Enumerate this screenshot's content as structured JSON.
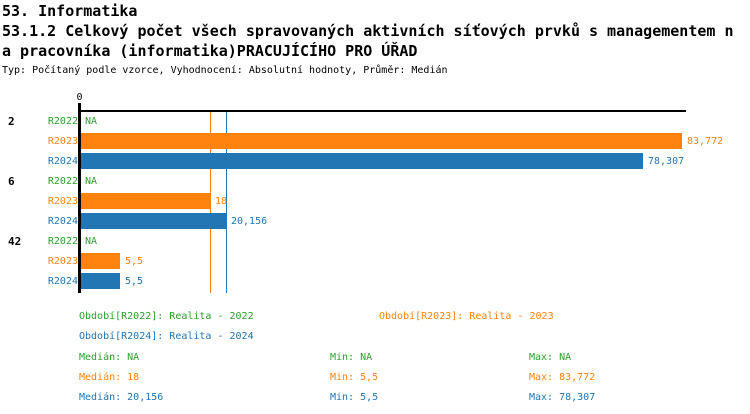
{
  "header": {
    "line1": "53. Informatika",
    "line2": "53.1.2 Celkový počet všech spravovaných aktivních síťových prvků s managementem n",
    "line3": "a pracovníka (informatika)PRACUJÍCÍHO PRO ÚŘAD",
    "meta": "Typ: Počítaný podle vzorce, Vyhodnocení: Absolutní hodnoty, Průměr: Medián"
  },
  "colors": {
    "R2022": "#2ca02c",
    "R2023": "#ff830e",
    "R2024": "#2276b4",
    "axis": "#000000"
  },
  "chart_data": {
    "type": "bar",
    "orientation": "horizontal",
    "value_format": "czech-decimal-comma",
    "x_axis": {
      "origin_label": "0",
      "min": 0,
      "max_bar_value": 83.772
    },
    "series": [
      "R2022",
      "R2023",
      "R2024"
    ],
    "groups": [
      {
        "id": "2",
        "bars": [
          {
            "series": "R2022",
            "value": null,
            "label": "NA"
          },
          {
            "series": "R2023",
            "value": 83.772,
            "label": "83,772"
          },
          {
            "series": "R2024",
            "value": 78.307,
            "label": "78,307"
          }
        ]
      },
      {
        "id": "6",
        "bars": [
          {
            "series": "R2022",
            "value": null,
            "label": "NA"
          },
          {
            "series": "R2023",
            "value": 18,
            "label": "18"
          },
          {
            "series": "R2024",
            "value": 20.156,
            "label": "20,156"
          }
        ]
      },
      {
        "id": "42",
        "bars": [
          {
            "series": "R2022",
            "value": null,
            "label": "NA"
          },
          {
            "series": "R2023",
            "value": 5.5,
            "label": "5,5"
          },
          {
            "series": "R2024",
            "value": 5.5,
            "label": "5,5"
          }
        ]
      }
    ],
    "median_lines": [
      {
        "series": "R2023",
        "value": 18
      },
      {
        "series": "R2024",
        "value": 20.156
      }
    ]
  },
  "legend": {
    "periods": [
      {
        "series": "R2022",
        "text": "Období[R2022]: Realita - 2022"
      },
      {
        "series": "R2023",
        "text": "Období[R2023]: Realita - 2023"
      },
      {
        "series": "R2024",
        "text": "Období[R2024]: Realita - 2024"
      }
    ],
    "stats": [
      {
        "series": "R2022",
        "median": "Medián: NA",
        "min": "Min: NA",
        "max": "Max: NA"
      },
      {
        "series": "R2023",
        "median": "Medián: 18",
        "min": "Min: 5,5",
        "max": "Max: 83,772"
      },
      {
        "series": "R2024",
        "median": "Medián: 20,156",
        "min": "Min: 5,5",
        "max": "Max: 78,307"
      }
    ]
  }
}
